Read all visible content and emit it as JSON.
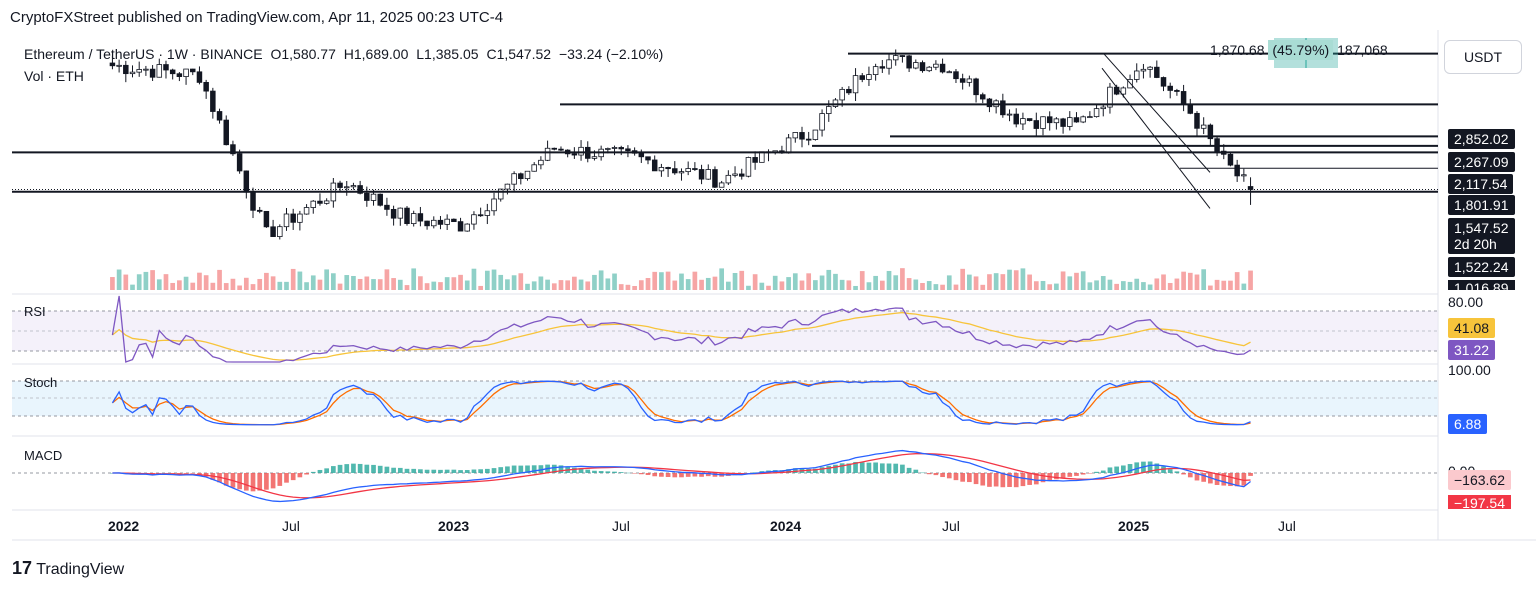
{
  "header": {
    "published": "CryptoFXStreet published on TradingView.com, Apr 11, 2025 00:23 UTC-4"
  },
  "legend": {
    "symbol": "Ethereum / TetherUS · 1W · BINANCE",
    "open": "O1,580.77",
    "high": "H1,689.00",
    "low": "L1,385.05",
    "close": "C1,547.52",
    "change": "−33.24 (−2.10%)",
    "volume_label": "Vol · ETH"
  },
  "measure": {
    "diff": "1,870.68",
    "pct": "(45.79%)",
    "ticks": "187,068"
  },
  "currency_button": "USDT",
  "price_axis": {
    "levels": [
      "2,852.02",
      "2,267.09",
      "2,117.54",
      "1,801.91",
      "1,547.52",
      "2d 20h",
      "1,522.24",
      "1,016.89"
    ]
  },
  "rsi": {
    "label": "RSI",
    "top_tick": "80.00",
    "ma_value": "41.08",
    "rsi_value": "31.22",
    "colors": {
      "rsi": "#7e57c2",
      "ma": "#f7c43b"
    }
  },
  "stoch": {
    "label": "Stoch",
    "top_tick": "100.00",
    "k_value": "6.88",
    "colors": {
      "k": "#2962ff",
      "d": "#ff6d00"
    }
  },
  "macd": {
    "label": "MACD",
    "zero_tick": "0.00",
    "signal_value": "−163.62",
    "macd_value": "−197.54",
    "colors": {
      "macd": "#2962ff",
      "signal": "#f23645",
      "hist_up": "#26a69a",
      "hist_down": "#ef5350"
    }
  },
  "x_axis": [
    "2022",
    "Jul",
    "2023",
    "Jul",
    "2024",
    "Jul",
    "2025",
    "Jul"
  ],
  "footer": "TradingView",
  "chart_data": {
    "type": "candlestick",
    "timeframe": "1W",
    "series": [
      {
        "name": "Ethereum / TetherUS",
        "x": [
          "2022-01-03",
          "2022-04-04",
          "2022-06-13",
          "2022-09-05",
          "2022-11-07",
          "2023-01-02",
          "2023-04-10",
          "2023-07-03",
          "2023-10-02",
          "2024-01-01",
          "2024-03-11",
          "2024-05-20",
          "2024-08-05",
          "2024-10-07",
          "2024-12-16",
          "2025-01-06",
          "2025-02-03",
          "2025-03-10",
          "2025-04-07"
        ],
        "close": [
          3770,
          3520,
          1120,
          1630,
          1250,
          1200,
          2080,
          1950,
          1650,
          2350,
          3940,
          3800,
          2600,
          2450,
          3890,
          3300,
          2700,
          1900,
          1547.52
        ]
      }
    ],
    "horizontal_levels": [
      2852.02,
      2267.09,
      2117.54,
      1801.91,
      1522.24
    ],
    "measure": {
      "diff": 1870.68,
      "pct": 45.79,
      "ticks": 187068
    },
    "last": {
      "open": 1580.77,
      "high": 1689.0,
      "low": 1385.05,
      "close": 1547.52,
      "change": -33.24,
      "change_pct": -2.1
    },
    "indicators": {
      "rsi": 31.22,
      "rsi_ma": 41.08,
      "stoch_k": 6.88,
      "macd": -197.54,
      "macd_signal": -163.62
    }
  }
}
